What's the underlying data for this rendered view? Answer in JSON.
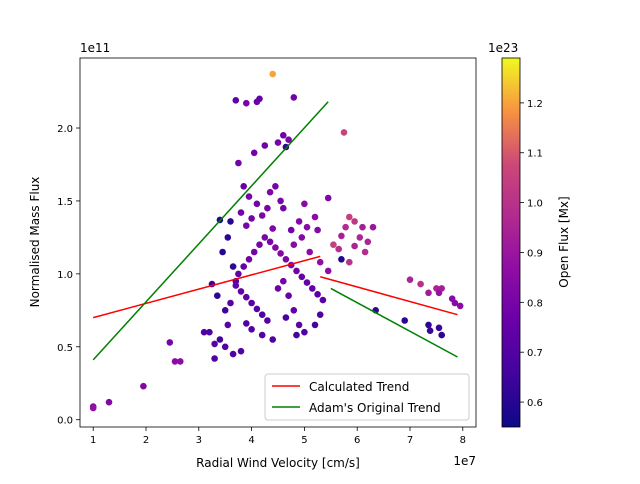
{
  "chart_data": {
    "type": "scatter",
    "xlabel": "Radial Wind Velocity [cm/s]",
    "ylabel": "Normalised Mass Flux",
    "x_offset_text": "1e7",
    "y_offset_text": "1e11",
    "xlim": [
      0.75,
      8.25
    ],
    "ylim": [
      -0.05,
      2.48
    ],
    "x_ticks": [
      1,
      2,
      3,
      4,
      5,
      6,
      7,
      8
    ],
    "y_ticks": [
      0.0,
      0.5,
      1.0,
      1.5,
      2.0
    ],
    "x_tick_labels": [
      "1",
      "2",
      "3",
      "4",
      "5",
      "6",
      "7",
      "8"
    ],
    "y_tick_labels": [
      "0.0",
      "0.5",
      "1.0",
      "1.5",
      "2.0"
    ],
    "colorbar": {
      "label": "Open Flux [Mx]",
      "offset_text": "1e23",
      "colormap": "plasma",
      "range": [
        0.55,
        1.29
      ],
      "ticks": [
        0.6,
        0.7,
        0.8,
        0.9,
        1.0,
        1.1,
        1.2
      ],
      "tick_labels": [
        "0.6",
        "0.7",
        "0.8",
        "0.9",
        "1.0",
        "1.1",
        "1.2"
      ]
    },
    "legend": {
      "position": "lower-right",
      "entries": [
        {
          "label": "Calculated Trend",
          "color": "#ff0000"
        },
        {
          "label": "Adam's Original Trend",
          "color": "#008000"
        }
      ]
    },
    "trend_lines": [
      {
        "name": "Calculated Trend",
        "color": "#ff0000",
        "points": [
          [
            1.0,
            0.7
          ],
          [
            5.3,
            1.12
          ]
        ]
      },
      {
        "name": "Calculated Trend",
        "color": "#ff0000",
        "points": [
          [
            5.3,
            0.98
          ],
          [
            7.9,
            0.72
          ]
        ]
      },
      {
        "name": "Adam's Original Trend",
        "color": "#008000",
        "points": [
          [
            1.0,
            0.41
          ],
          [
            5.45,
            2.18
          ]
        ]
      },
      {
        "name": "Adam's Original Trend",
        "color": "#008000",
        "points": [
          [
            5.5,
            0.9
          ],
          [
            7.9,
            0.43
          ]
        ]
      }
    ],
    "points": [
      [
        4.4,
        2.37,
        1.2
      ],
      [
        4.8,
        2.21,
        0.78
      ],
      [
        3.7,
        2.19,
        0.74
      ],
      [
        4.1,
        2.18,
        0.76
      ],
      [
        4.15,
        2.2,
        0.75
      ],
      [
        3.9,
        2.17,
        0.8
      ],
      [
        5.75,
        1.97,
        1.06
      ],
      [
        4.6,
        1.95,
        0.77
      ],
      [
        4.7,
        1.92,
        0.82
      ],
      [
        4.5,
        1.9,
        0.8
      ],
      [
        4.25,
        1.88,
        0.78
      ],
      [
        4.65,
        1.87,
        0.62
      ],
      [
        4.05,
        1.83,
        0.79
      ],
      [
        3.75,
        1.76,
        0.78
      ],
      [
        3.85,
        1.6,
        0.76
      ],
      [
        4.35,
        1.56,
        0.82
      ],
      [
        3.95,
        1.53,
        0.8
      ],
      [
        5.45,
        1.52,
        0.82
      ],
      [
        5.0,
        1.48,
        0.85
      ],
      [
        4.6,
        1.45,
        0.8
      ],
      [
        3.6,
        1.36,
        0.6
      ],
      [
        3.8,
        1.42,
        0.78
      ],
      [
        4.2,
        1.4,
        0.82
      ],
      [
        4.9,
        1.36,
        0.83
      ],
      [
        5.2,
        1.39,
        0.86
      ],
      [
        3.4,
        1.37,
        0.58
      ],
      [
        3.9,
        1.33,
        0.8
      ],
      [
        4.4,
        1.31,
        0.82
      ],
      [
        4.75,
        1.3,
        0.78
      ],
      [
        5.25,
        1.3,
        0.84
      ],
      [
        5.85,
        1.39,
        1.05
      ],
      [
        5.95,
        1.36,
        1.02
      ],
      [
        5.78,
        1.32,
        0.98
      ],
      [
        6.1,
        1.32,
        0.93
      ],
      [
        6.3,
        1.32,
        0.9
      ],
      [
        6.05,
        1.25,
        0.96
      ],
      [
        5.7,
        1.26,
        0.94
      ],
      [
        5.55,
        1.2,
        1.05
      ],
      [
        5.65,
        1.17,
        0.99
      ],
      [
        5.95,
        1.19,
        0.95
      ],
      [
        6.2,
        1.22,
        0.95
      ],
      [
        6.15,
        1.15,
        0.98
      ],
      [
        5.7,
        1.1,
        0.59
      ],
      [
        5.85,
        1.08,
        1.0
      ],
      [
        6.35,
        0.75,
        0.62
      ],
      [
        6.9,
        0.68,
        0.62
      ],
      [
        7.0,
        0.96,
        0.95
      ],
      [
        7.2,
        0.93,
        1.0
      ],
      [
        7.35,
        0.87,
        0.92
      ],
      [
        7.5,
        0.9,
        0.95
      ],
      [
        7.55,
        0.87,
        0.88
      ],
      [
        7.6,
        0.9,
        0.93
      ],
      [
        7.8,
        0.83,
        0.85
      ],
      [
        7.85,
        0.8,
        0.85
      ],
      [
        7.95,
        0.78,
        0.85
      ],
      [
        7.35,
        0.65,
        0.62
      ],
      [
        7.38,
        0.61,
        0.64
      ],
      [
        7.55,
        0.63,
        0.64
      ],
      [
        7.6,
        0.58,
        0.62
      ],
      [
        1.0,
        0.09,
        0.85
      ],
      [
        1.0,
        0.08,
        0.88
      ],
      [
        1.3,
        0.12,
        0.82
      ],
      [
        1.95,
        0.23,
        0.83
      ],
      [
        2.45,
        0.53,
        0.8
      ],
      [
        2.55,
        0.4,
        0.85
      ],
      [
        2.65,
        0.4,
        0.86
      ],
      [
        3.2,
        0.6,
        0.68
      ],
      [
        3.3,
        0.52,
        0.72
      ],
      [
        3.3,
        0.42,
        0.7
      ],
      [
        3.4,
        0.55,
        0.66
      ],
      [
        3.25,
        0.93,
        0.65
      ],
      [
        3.1,
        0.6,
        0.7
      ],
      [
        3.5,
        0.5,
        0.7
      ],
      [
        3.55,
        0.65,
        0.72
      ],
      [
        3.65,
        0.45,
        0.7
      ],
      [
        3.8,
        0.47,
        0.7
      ],
      [
        3.6,
        0.8,
        0.72
      ],
      [
        3.7,
        0.95,
        0.7
      ],
      [
        3.75,
        1.0,
        0.74
      ],
      [
        3.85,
        1.05,
        0.76
      ],
      [
        3.95,
        1.1,
        0.78
      ],
      [
        4.05,
        1.15,
        0.79
      ],
      [
        4.15,
        1.2,
        0.8
      ],
      [
        4.25,
        1.25,
        0.81
      ],
      [
        4.35,
        1.22,
        0.8
      ],
      [
        4.45,
        1.18,
        0.83
      ],
      [
        4.55,
        1.14,
        0.84
      ],
      [
        4.65,
        1.1,
        0.82
      ],
      [
        4.75,
        1.06,
        0.81
      ],
      [
        4.85,
        1.02,
        0.78
      ],
      [
        4.95,
        0.98,
        0.76
      ],
      [
        5.05,
        0.94,
        0.75
      ],
      [
        5.15,
        0.9,
        0.74
      ],
      [
        5.25,
        0.86,
        0.73
      ],
      [
        5.35,
        0.82,
        0.72
      ],
      [
        4.3,
        0.68,
        0.71
      ],
      [
        4.2,
        0.72,
        0.7
      ],
      [
        4.1,
        0.76,
        0.71
      ],
      [
        4.0,
        0.8,
        0.72
      ],
      [
        3.9,
        0.84,
        0.73
      ],
      [
        3.8,
        0.88,
        0.74
      ],
      [
        3.7,
        0.92,
        0.75
      ],
      [
        4.5,
        0.9,
        0.77
      ],
      [
        4.6,
        0.95,
        0.79
      ],
      [
        4.7,
        0.85,
        0.76
      ],
      [
        4.8,
        0.75,
        0.74
      ],
      [
        4.9,
        0.65,
        0.72
      ],
      [
        5.0,
        0.6,
        0.7
      ],
      [
        4.4,
        0.55,
        0.69
      ],
      [
        4.2,
        0.58,
        0.7
      ],
      [
        4.0,
        0.62,
        0.71
      ],
      [
        3.9,
        0.66,
        0.7
      ],
      [
        4.45,
        1.6,
        0.8
      ],
      [
        4.55,
        1.5,
        0.81
      ],
      [
        4.3,
        1.45,
        0.8
      ],
      [
        4.1,
        1.48,
        0.79
      ],
      [
        4.0,
        1.38,
        0.8
      ],
      [
        4.8,
        1.2,
        0.85
      ],
      [
        5.1,
        1.15,
        0.86
      ],
      [
        5.3,
        1.08,
        0.87
      ],
      [
        5.45,
        1.02,
        0.86
      ],
      [
        4.95,
        1.25,
        0.84
      ],
      [
        5.05,
        1.32,
        0.85
      ],
      [
        3.55,
        1.25,
        0.62
      ],
      [
        3.45,
        1.15,
        0.6
      ],
      [
        3.65,
        1.05,
        0.63
      ],
      [
        3.35,
        0.85,
        0.62
      ],
      [
        3.5,
        0.75,
        0.65
      ],
      [
        4.65,
        0.7,
        0.68
      ],
      [
        4.85,
        0.58,
        0.67
      ],
      [
        5.2,
        0.65,
        0.66
      ],
      [
        5.3,
        0.72,
        0.68
      ]
    ]
  }
}
